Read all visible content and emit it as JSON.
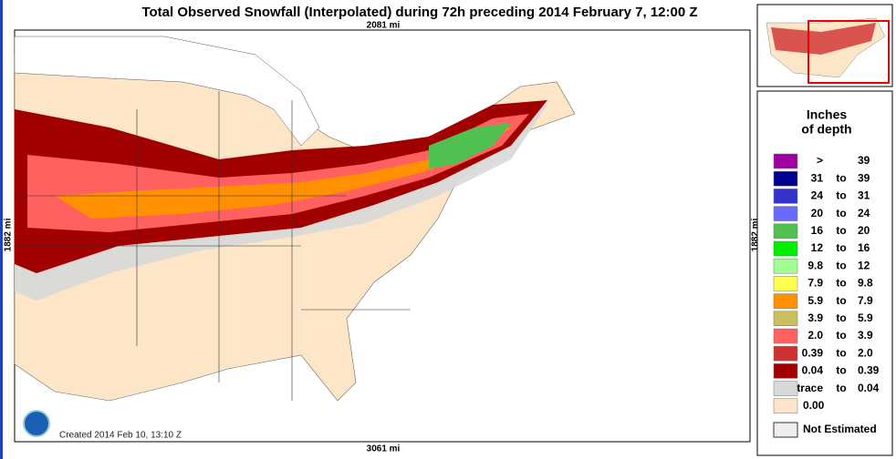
{
  "header": {
    "title": "Total Observed Snowfall (Interpolated) during 72h preceding 2014 February 7, 12:00 Z"
  },
  "map": {
    "top_label": "2081 mi",
    "side_label": "1882 mi",
    "bottom_label": "3061 mi",
    "created": "Created 2014 Feb 10, 13:10 Z"
  },
  "legend": {
    "title_lines": [
      "Inches",
      "of depth"
    ],
    "rows": [
      {
        "color": "#a000a0",
        "text": [
          ">",
          "39"
        ]
      },
      {
        "color": "#000090",
        "text": [
          "31",
          "to",
          "39"
        ]
      },
      {
        "color": "#3333cc",
        "text": [
          "24",
          "to",
          "31"
        ]
      },
      {
        "color": "#6a6aff",
        "text": [
          "20",
          "to",
          "24"
        ]
      },
      {
        "color": "#50c050",
        "text": [
          "16",
          "to",
          "20"
        ]
      },
      {
        "color": "#00ee00",
        "text": [
          "12",
          "to",
          "16"
        ]
      },
      {
        "color": "#a0ff90",
        "text": [
          "9.8",
          "to",
          "12"
        ]
      },
      {
        "color": "#ffff50",
        "text": [
          "7.9",
          "to",
          "9.8"
        ]
      },
      {
        "color": "#ff9000",
        "text": [
          "5.9",
          "to",
          "7.9"
        ]
      },
      {
        "color": "#c8c060",
        "text": [
          "3.9",
          "to",
          "5.9"
        ]
      },
      {
        "color": "#ff6060",
        "text": [
          "2.0",
          "to",
          "3.9"
        ]
      },
      {
        "color": "#d03030",
        "text": [
          "0.39",
          "to",
          "2.0"
        ]
      },
      {
        "color": "#a00000",
        "text": [
          "0.04",
          "to",
          "0.39"
        ]
      },
      {
        "color": "#d8d8d8",
        "text": [
          "trace",
          "to",
          "0.04"
        ]
      },
      {
        "color": "#fde5c8",
        "text": [
          "0.00"
        ]
      }
    ],
    "not_estimated": {
      "color": "#eeeeee",
      "text": "Not Estimated"
    }
  }
}
